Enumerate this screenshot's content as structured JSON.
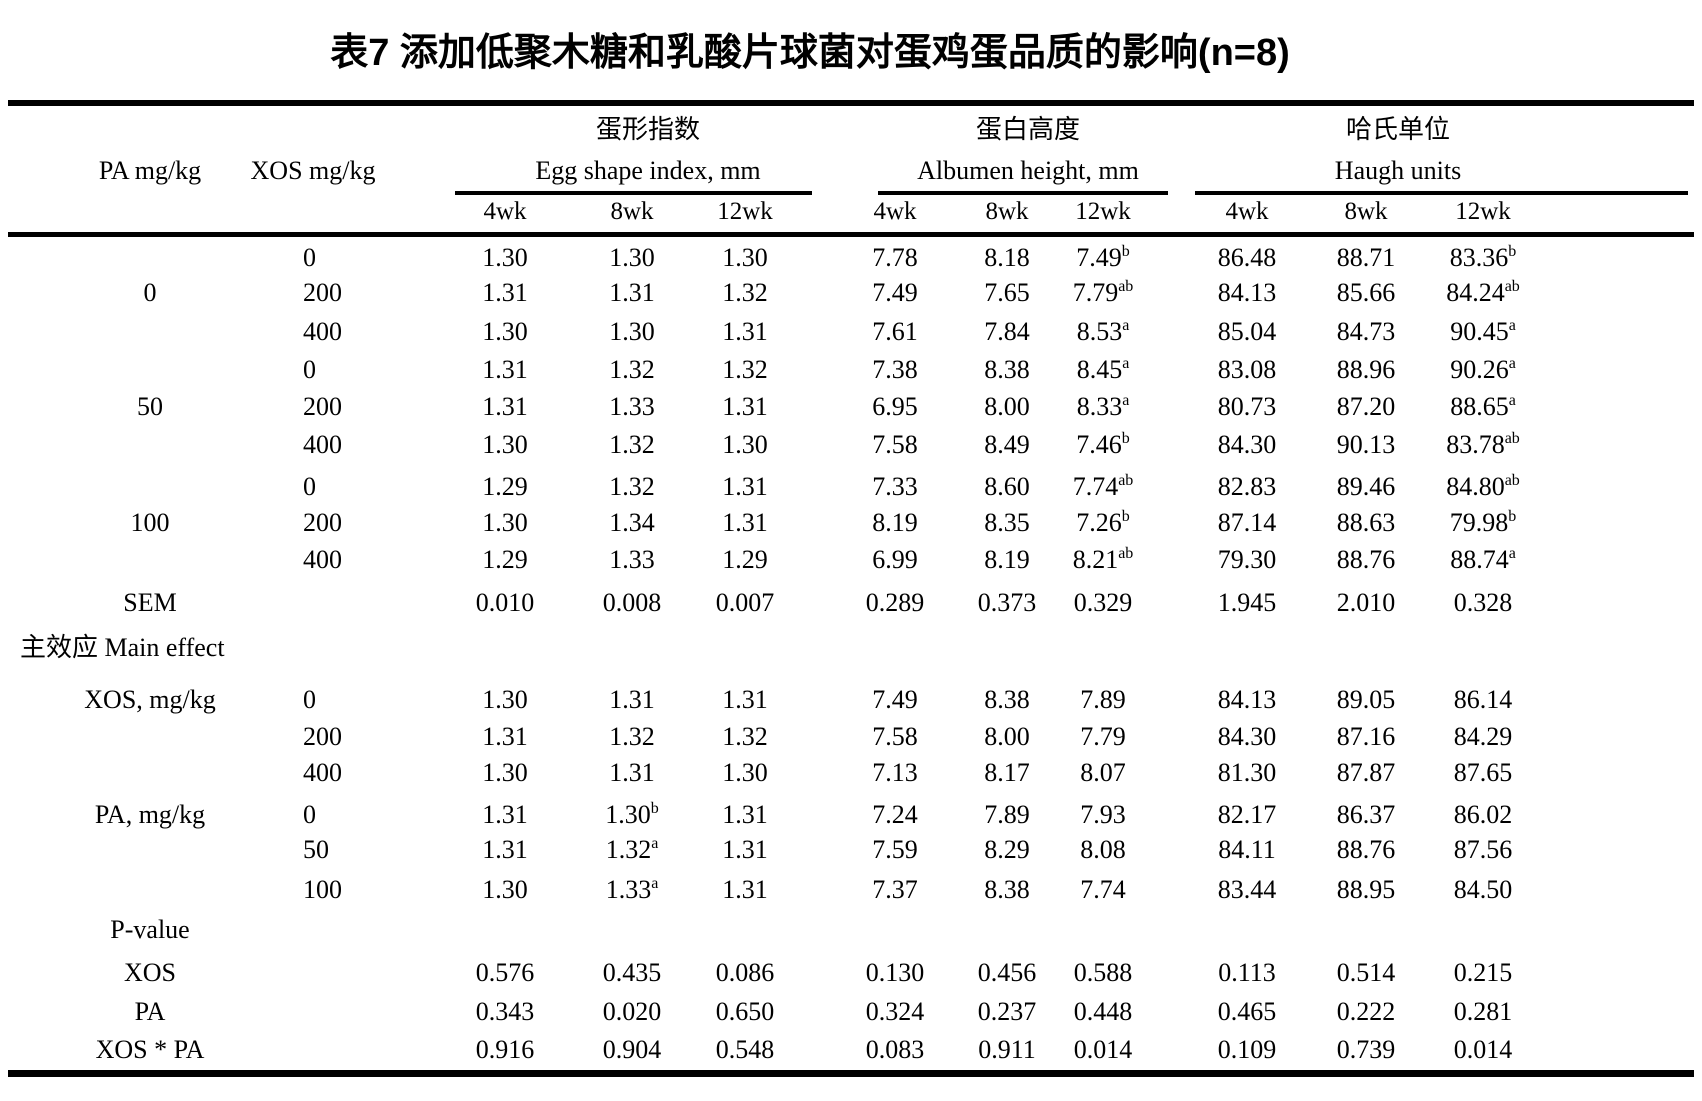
{
  "title": "表7 添加低聚木糖和乳酸片球菌对蛋鸡蛋品质的影响(n=8)",
  "colors": {
    "text": "#000000",
    "background": "#ffffff",
    "rule": "#000000"
  },
  "table": {
    "col_headers": {
      "pa": "PA mg/kg",
      "xos": "XOS mg/kg"
    },
    "groups": [
      {
        "zh": "蛋形指数",
        "en": "Egg shape index, mm",
        "weeks": [
          "4wk",
          "8wk",
          "12wk"
        ]
      },
      {
        "zh": "蛋白高度",
        "en": "Albumen height, mm",
        "weeks": [
          "4wk",
          "8wk",
          "12wk"
        ]
      },
      {
        "zh": "哈氏单位",
        "en": "Haugh units",
        "weeks": [
          "4wk",
          "8wk",
          "12wk"
        ]
      }
    ],
    "rows": [
      {
        "label": "",
        "xos": "0",
        "cells": [
          "1.30",
          "1.30",
          "1.30",
          "7.78",
          "8.18",
          "7.49^b",
          "86.48",
          "88.71",
          "83.36^b"
        ]
      },
      {
        "label": "0",
        "xos": "200",
        "cells": [
          "1.31",
          "1.31",
          "1.32",
          "7.49",
          "7.65",
          "7.79^ab",
          "84.13",
          "85.66",
          "84.24^ab"
        ]
      },
      {
        "label": "",
        "xos": "400",
        "cells": [
          "1.30",
          "1.30",
          "1.31",
          "7.61",
          "7.84",
          "8.53^a",
          "85.04",
          "84.73",
          "90.45^a"
        ]
      },
      {
        "label": "",
        "xos": "0",
        "cells": [
          "1.31",
          "1.32",
          "1.32",
          "7.38",
          "8.38",
          "8.45^a",
          "83.08",
          "88.96",
          "90.26^a"
        ]
      },
      {
        "label": "50",
        "xos": "200",
        "cells": [
          "1.31",
          "1.33",
          "1.31",
          "6.95",
          "8.00",
          "8.33^a",
          "80.73",
          "87.20",
          "88.65^a"
        ]
      },
      {
        "label": "",
        "xos": "400",
        "cells": [
          "1.30",
          "1.32",
          "1.30",
          "7.58",
          "8.49",
          "7.46^b",
          "84.30",
          "90.13",
          "83.78^ab"
        ]
      },
      {
        "label": "",
        "xos": "0",
        "cells": [
          "1.29",
          "1.32",
          "1.31",
          "7.33",
          "8.60",
          "7.74^ab",
          "82.83",
          "89.46",
          "84.80^ab"
        ]
      },
      {
        "label": "100",
        "xos": "200",
        "cells": [
          "1.30",
          "1.34",
          "1.31",
          "8.19",
          "8.35",
          "7.26^b",
          "87.14",
          "88.63",
          "79.98^b"
        ]
      },
      {
        "label": "",
        "xos": "400",
        "cells": [
          "1.29",
          "1.33",
          "1.29",
          "6.99",
          "8.19",
          "8.21^ab",
          "79.30",
          "88.76",
          "88.74^a"
        ]
      },
      {
        "label": "SEM",
        "xos": "",
        "cells": [
          "0.010",
          "0.008",
          "0.007",
          "0.289",
          "0.373",
          "0.329",
          "1.945",
          "2.010",
          "0.328"
        ]
      },
      {
        "label": "主效应 Main effect",
        "label_align": "left",
        "xos": "",
        "cells": []
      },
      {
        "label": "XOS, mg/kg",
        "xos": "0",
        "cells": [
          "1.30",
          "1.31",
          "1.31",
          "7.49",
          "8.38",
          "7.89",
          "84.13",
          "89.05",
          "86.14"
        ]
      },
      {
        "label": "",
        "xos": "200",
        "cells": [
          "1.31",
          "1.32",
          "1.32",
          "7.58",
          "8.00",
          "7.79",
          "84.30",
          "87.16",
          "84.29"
        ]
      },
      {
        "label": "",
        "xos": "400",
        "cells": [
          "1.30",
          "1.31",
          "1.30",
          "7.13",
          "8.17",
          "8.07",
          "81.30",
          "87.87",
          "87.65"
        ]
      },
      {
        "label": "PA, mg/kg",
        "xos": "0",
        "cells": [
          "1.31",
          "1.30^b",
          "1.31",
          "7.24",
          "7.89",
          "7.93",
          "82.17",
          "86.37",
          "86.02"
        ]
      },
      {
        "label": "",
        "xos": "50",
        "cells": [
          "1.31",
          "1.32^a",
          "1.31",
          "7.59",
          "8.29",
          "8.08",
          "84.11",
          "88.76",
          "87.56"
        ]
      },
      {
        "label": "",
        "xos": "100",
        "cells": [
          "1.30",
          "1.33^a",
          "1.31",
          "7.37",
          "8.38",
          "7.74",
          "83.44",
          "88.95",
          "84.50"
        ]
      },
      {
        "label": "P-value",
        "xos": "",
        "cells": []
      },
      {
        "label": "XOS",
        "xos": "",
        "cells": [
          "0.576",
          "0.435",
          "0.086",
          "0.130",
          "0.456",
          "0.588",
          "0.113",
          "0.514",
          "0.215"
        ]
      },
      {
        "label": "PA",
        "xos": "",
        "cells": [
          "0.343",
          "0.020",
          "0.650",
          "0.324",
          "0.237",
          "0.448",
          "0.465",
          "0.222",
          "0.281"
        ]
      },
      {
        "label": "XOS * PA",
        "xos": "",
        "cells": [
          "0.916",
          "0.904",
          "0.548",
          "0.083",
          "0.911",
          "0.014",
          "0.109",
          "0.739",
          "0.014"
        ]
      }
    ]
  }
}
